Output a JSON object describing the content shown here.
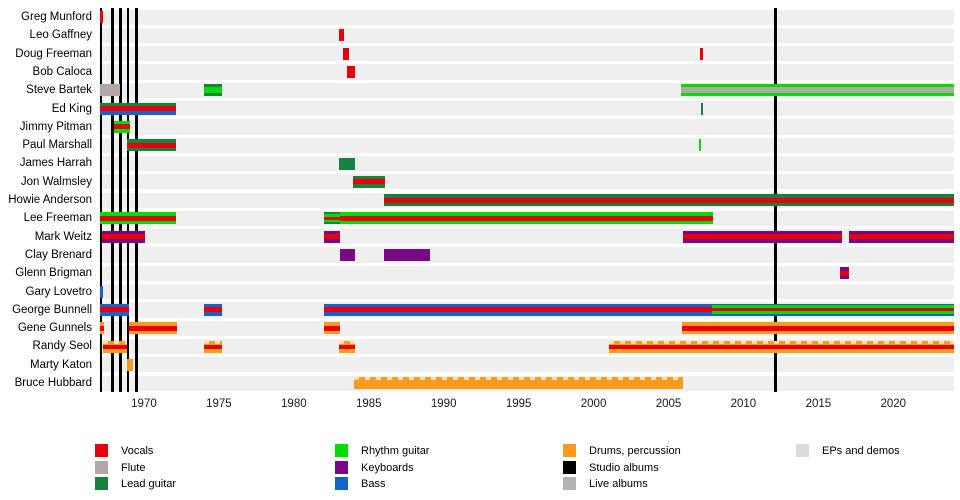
{
  "chart_data": {
    "type": "timeline",
    "description": "Band membership timeline (gantt-style) with instrument color stripes and studio album release markers",
    "axis": {
      "min": 1967.0,
      "max": 2024.05,
      "tick_years": [
        1970,
        1975,
        1980,
        1985,
        1990,
        1995,
        2000,
        2005,
        2010,
        2015,
        2020
      ]
    },
    "colors": {
      "vocals": "#e8000d",
      "flute": "#b3a6a4",
      "lead": "#17813d",
      "rhythm": "#00dd00",
      "keys": "#790887",
      "bass": "#1364c9",
      "drums": "#f99c1c",
      "drums_hatch_light": "#ffe0a8",
      "studio": "#000000",
      "live": "#b3b3b3",
      "eps": "#dcdcdc"
    },
    "legend": [
      {
        "key": "vocals",
        "label": "Vocals",
        "col": 0
      },
      {
        "key": "flute",
        "label": "Flute",
        "col": 0
      },
      {
        "key": "lead",
        "label": "Lead guitar",
        "col": 0
      },
      {
        "key": "rhythm",
        "label": "Rhythm guitar",
        "col": 1
      },
      {
        "key": "keys",
        "label": "Keyboards",
        "col": 1
      },
      {
        "key": "bass",
        "label": "Bass",
        "col": 1
      },
      {
        "key": "drums",
        "label": "Drums, percussion",
        "col": 2
      },
      {
        "key": "studio",
        "label": "Studio albums",
        "col": 2
      },
      {
        "key": "live",
        "label": "Live albums",
        "col": 2
      },
      {
        "key": "eps",
        "label": "EPs and demos",
        "col": 3
      }
    ],
    "album_markers": {
      "studio": [
        1967.15,
        1967.9,
        1968.42,
        1968.92,
        1969.5,
        2012.15
      ],
      "live": [],
      "eps": []
    },
    "members": [
      {
        "name": "Greg Munford",
        "segments": [
          {
            "start": 1967.05,
            "end": 1967.28,
            "parts": [
              [
                "vocals",
                1
              ]
            ]
          }
        ]
      },
      {
        "name": "Leo Gaffney",
        "segments": [
          {
            "start": 1983.0,
            "end": 1983.33,
            "parts": [
              [
                "vocals",
                1
              ]
            ]
          }
        ]
      },
      {
        "name": "Doug Freeman",
        "segments": [
          {
            "start": 1983.27,
            "end": 1983.65,
            "parts": [
              [
                "vocals",
                1
              ]
            ]
          },
          {
            "start": 2007.1,
            "end": 2007.27,
            "parts": [
              [
                "vocals",
                1
              ]
            ]
          }
        ]
      },
      {
        "name": "Bob Caloca",
        "segments": [
          {
            "start": 1983.58,
            "end": 1984.05,
            "parts": [
              [
                "vocals",
                1
              ]
            ]
          }
        ]
      },
      {
        "name": "Steve Bartek",
        "segments": [
          {
            "start": 1967.05,
            "end": 1968.4,
            "parts": [
              [
                "flute",
                1
              ]
            ]
          },
          {
            "start": 1974.0,
            "end": 1975.2,
            "parts": [
              [
                "lead",
                3
              ],
              [
                "rhythm",
                6
              ],
              [
                "lead",
                3
              ]
            ]
          },
          {
            "start": 2005.85,
            "end": 2024.05,
            "parts": [
              [
                "rhythm",
                3
              ],
              [
                "flute",
                6
              ],
              [
                "rhythm",
                3
              ]
            ]
          }
        ]
      },
      {
        "name": "Ed King",
        "segments": [
          {
            "start": 1967.05,
            "end": 1972.15,
            "parts": [
              [
                "lead",
                3.5
              ],
              [
                "vocals",
                5
              ],
              [
                "bass",
                3.5
              ]
            ]
          },
          {
            "start": 2007.15,
            "end": 2007.3,
            "parts": [
              [
                "lead",
                1
              ]
            ]
          }
        ]
      },
      {
        "name": "Jimmy Pitman",
        "segments": [
          {
            "start": 1968.0,
            "end": 1969.05,
            "parts": [
              [
                "rhythm",
                3.5
              ],
              [
                "vocals",
                5
              ],
              [
                "rhythm",
                3.5
              ]
            ]
          }
        ]
      },
      {
        "name": "Paul Marshall",
        "segments": [
          {
            "start": 1968.9,
            "end": 1972.15,
            "parts": [
              [
                "lead",
                3.5
              ],
              [
                "vocals",
                5
              ],
              [
                "lead",
                3.5
              ]
            ]
          },
          {
            "start": 2007.05,
            "end": 2007.2,
            "parts": [
              [
                "rhythm",
                1
              ]
            ]
          }
        ]
      },
      {
        "name": "James Harrah",
        "segments": [
          {
            "start": 1983.0,
            "end": 1984.05,
            "parts": [
              [
                "lead",
                1
              ]
            ]
          }
        ]
      },
      {
        "name": "Jon Walmsley",
        "segments": [
          {
            "start": 1983.98,
            "end": 1986.08,
            "parts": [
              [
                "lead",
                3.5
              ],
              [
                "vocals",
                5
              ],
              [
                "lead",
                3.5
              ]
            ]
          }
        ]
      },
      {
        "name": "Howie Anderson",
        "segments": [
          {
            "start": 1986.0,
            "end": 2024.05,
            "parts": [
              [
                "lead",
                3.5
              ],
              [
                "vocals",
                5
              ],
              [
                "lead",
                3.5
              ]
            ]
          }
        ]
      },
      {
        "name": "Lee Freeman",
        "segments": [
          {
            "start": 1967.05,
            "end": 1972.15,
            "parts": [
              [
                "rhythm",
                3.5
              ],
              [
                "vocals",
                5
              ],
              [
                "rhythm",
                3.5
              ]
            ]
          },
          {
            "start": 1982.0,
            "end": 1983.05,
            "parts": [
              [
                "lead",
                2
              ],
              [
                "rhythm",
                2.5
              ],
              [
                "vocals",
                3
              ],
              [
                "rhythm",
                2.5
              ],
              [
                "lead",
                2
              ]
            ]
          },
          {
            "start": 1983.05,
            "end": 2007.95,
            "parts": [
              [
                "rhythm",
                3.5
              ],
              [
                "vocals",
                5
              ],
              [
                "rhythm",
                3.5
              ]
            ]
          }
        ]
      },
      {
        "name": "Mark Weitz",
        "segments": [
          {
            "start": 1967.2,
            "end": 1970.1,
            "parts": [
              [
                "keys",
                3.5
              ],
              [
                "vocals",
                5
              ],
              [
                "keys",
                3.5
              ]
            ]
          },
          {
            "start": 1982.0,
            "end": 1983.1,
            "parts": [
              [
                "keys",
                3.5
              ],
              [
                "vocals",
                5
              ],
              [
                "keys",
                3.5
              ]
            ]
          },
          {
            "start": 2005.95,
            "end": 2016.6,
            "parts": [
              [
                "keys",
                3.5
              ],
              [
                "vocals",
                5
              ],
              [
                "keys",
                3.5
              ]
            ]
          },
          {
            "start": 2017.05,
            "end": 2024.05,
            "parts": [
              [
                "keys",
                3.5
              ],
              [
                "vocals",
                5
              ],
              [
                "keys",
                3.5
              ]
            ]
          }
        ]
      },
      {
        "name": "Clay Brenard",
        "segments": [
          {
            "start": 1983.05,
            "end": 1984.1,
            "parts": [
              [
                "keys",
                1
              ]
            ]
          },
          {
            "start": 1986.0,
            "end": 1989.1,
            "parts": [
              [
                "keys",
                1
              ]
            ]
          }
        ]
      },
      {
        "name": "Glenn Brigman",
        "segments": [
          {
            "start": 2016.45,
            "end": 2017.05,
            "parts": [
              [
                "keys",
                3.5
              ],
              [
                "vocals",
                5
              ],
              [
                "keys",
                3.5
              ]
            ]
          }
        ]
      },
      {
        "name": "Gary Lovetro",
        "segments": [
          {
            "start": 1967.05,
            "end": 1967.3,
            "parts": [
              [
                "bass",
                1
              ]
            ]
          }
        ]
      },
      {
        "name": "George Bunnell",
        "segments": [
          {
            "start": 1967.1,
            "end": 1969.0,
            "parts": [
              [
                "bass",
                3.5
              ],
              [
                "vocals",
                5
              ],
              [
                "bass",
                3.5
              ]
            ]
          },
          {
            "start": 1974.0,
            "end": 1975.2,
            "parts": [
              [
                "bass",
                3.5
              ],
              [
                "vocals",
                5
              ],
              [
                "bass",
                3.5
              ]
            ]
          },
          {
            "start": 1982.0,
            "end": 2007.9,
            "parts": [
              [
                "bass",
                3.5
              ],
              [
                "vocals",
                5
              ],
              [
                "bass",
                3.5
              ]
            ]
          },
          {
            "start": 2007.9,
            "end": 2024.05,
            "parts": [
              [
                "bass",
                1.5
              ],
              [
                "rhythm",
                3
              ],
              [
                "vocals",
                3
              ],
              [
                "rhythm",
                3
              ],
              [
                "bass",
                1.5
              ]
            ]
          }
        ]
      },
      {
        "name": "Gene Gunnels",
        "segments": [
          {
            "start": 1967.05,
            "end": 1967.35,
            "parts": [
              [
                "drums",
                3.5
              ],
              [
                "vocals",
                5
              ],
              [
                "drums",
                3.5
              ]
            ]
          },
          {
            "start": 1969.0,
            "end": 1972.2,
            "parts": [
              [
                "drums",
                3.5
              ],
              [
                "vocals",
                5
              ],
              [
                "drums",
                3.5
              ]
            ]
          },
          {
            "start": 1982.0,
            "end": 1983.1,
            "parts": [
              [
                "drums",
                3.5
              ],
              [
                "vocals",
                5
              ],
              [
                "drums",
                3.5
              ]
            ]
          },
          {
            "start": 2005.9,
            "end": 2024.05,
            "parts": [
              [
                "drums",
                3.5
              ],
              [
                "vocals",
                5
              ],
              [
                "drums",
                3.5
              ]
            ]
          }
        ]
      },
      {
        "name": "Randy Seol",
        "segments": [
          {
            "start": 1967.3,
            "end": 1968.9,
            "parts": [
              [
                "drums_hatch",
                3
              ],
              [
                "drums",
                1
              ],
              [
                "vocals",
                4.5
              ],
              [
                "drums",
                3.5
              ]
            ]
          },
          {
            "start": 1974.0,
            "end": 1975.2,
            "parts": [
              [
                "drums_hatch",
                3
              ],
              [
                "drums",
                1
              ],
              [
                "vocals",
                4.5
              ],
              [
                "drums",
                3.5
              ]
            ]
          },
          {
            "start": 1983.0,
            "end": 1984.05,
            "parts": [
              [
                "drums_hatch",
                3
              ],
              [
                "drums",
                1
              ],
              [
                "vocals",
                4.5
              ],
              [
                "drums",
                3.5
              ]
            ]
          },
          {
            "start": 2001.0,
            "end": 2024.05,
            "parts": [
              [
                "drums_hatch",
                3
              ],
              [
                "drums",
                1
              ],
              [
                "vocals",
                4.5
              ],
              [
                "drums",
                3.5
              ]
            ]
          }
        ]
      },
      {
        "name": "Marty Katon",
        "segments": [
          {
            "start": 1968.85,
            "end": 1969.3,
            "parts": [
              [
                "drums",
                1
              ]
            ]
          }
        ]
      },
      {
        "name": "Bruce Hubbard",
        "segments": [
          {
            "start": 1984.0,
            "end": 2005.95,
            "parts": [
              [
                "drums_hatch",
                3
              ],
              [
                "drums",
                9
              ]
            ]
          }
        ]
      }
    ]
  }
}
